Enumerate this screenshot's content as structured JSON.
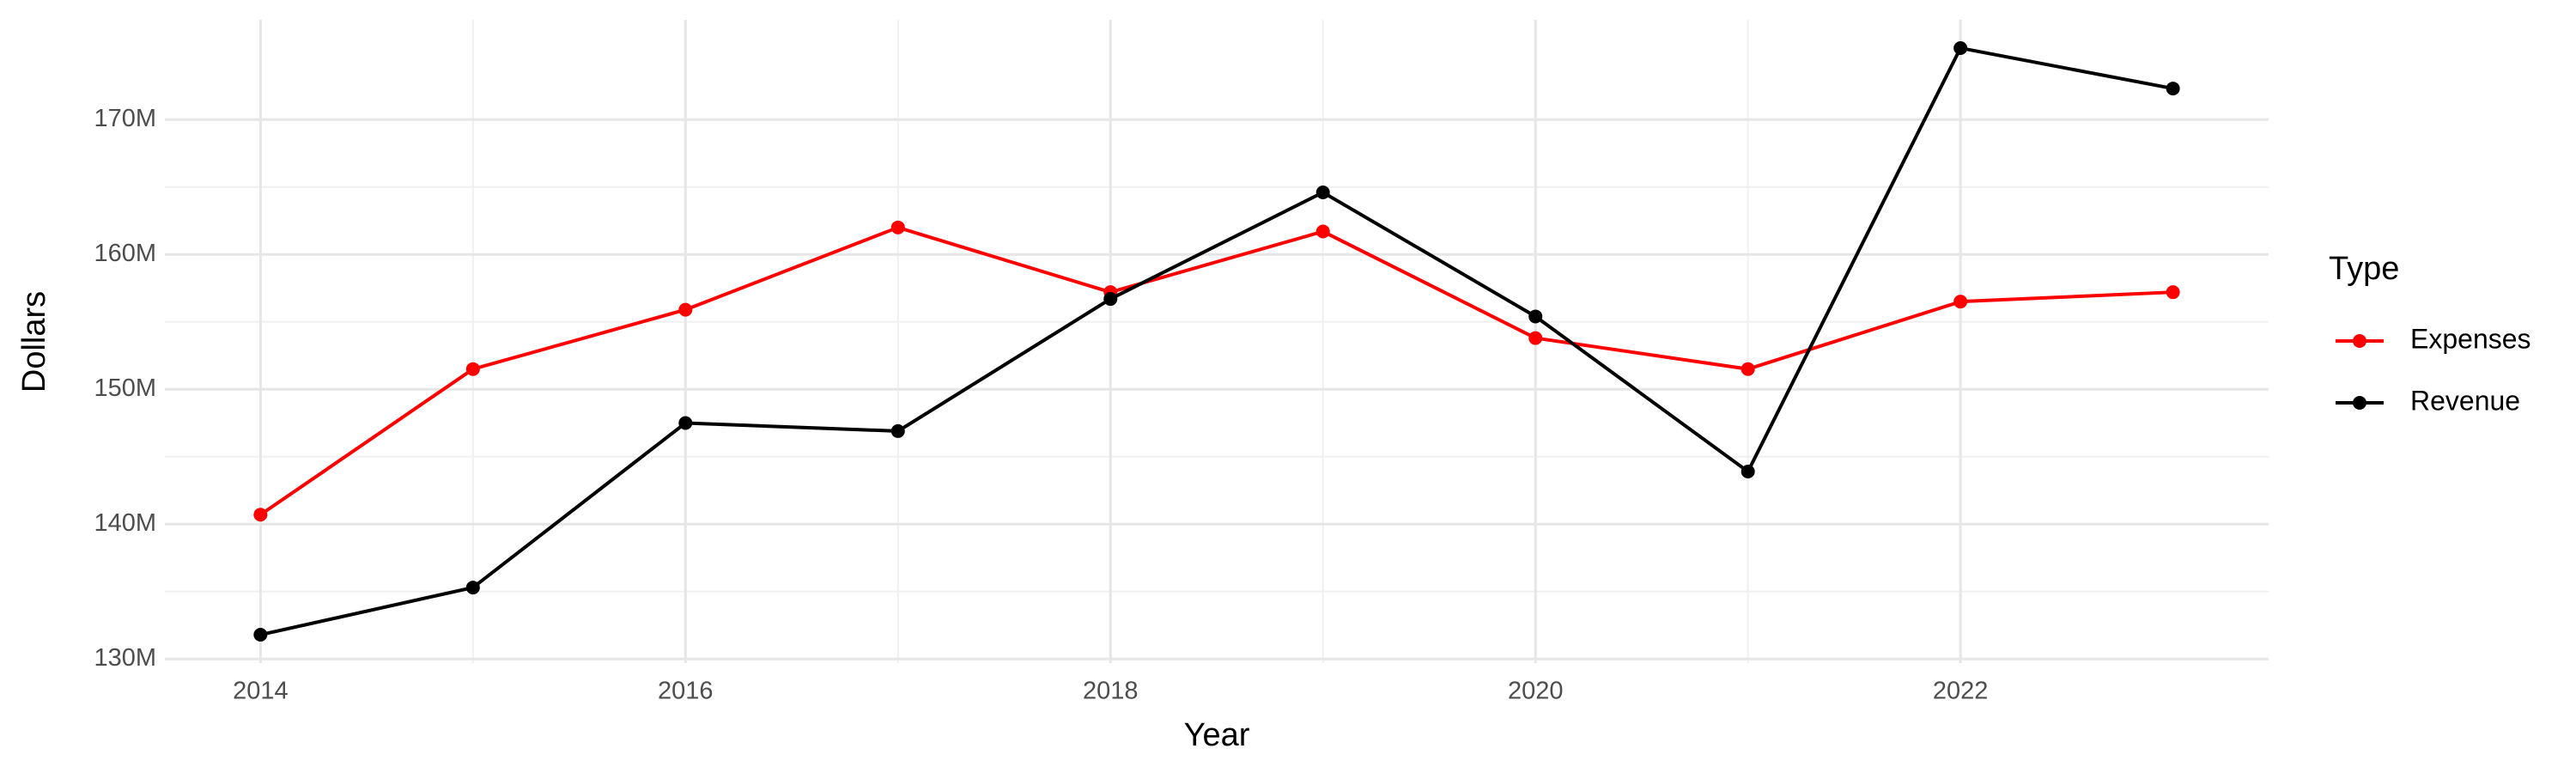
{
  "chart_data": {
    "type": "line",
    "x_label": "Year",
    "y_label": "Dollars",
    "legend_title": "Type",
    "x": [
      2014,
      2015,
      2016,
      2017,
      2018,
      2019,
      2020,
      2021,
      2022,
      2023
    ],
    "series": [
      {
        "name": "Expenses",
        "color": "#ff0000",
        "values": [
          140700000,
          151500000,
          155900000,
          162000000,
          157200000,
          161700000,
          153800000,
          151500000,
          156500000,
          157200000
        ]
      },
      {
        "name": "Revenue",
        "color": "#000000",
        "values": [
          131800000,
          135300000,
          147500000,
          146900000,
          156700000,
          164600000,
          155400000,
          143900000,
          175300000,
          172300000
        ]
      }
    ],
    "xlim": [
      2013.55,
      2023.45
    ],
    "xticks": [
      2014,
      2016,
      2018,
      2020,
      2022
    ],
    "ylim": [
      129700000,
      177400000
    ],
    "yticks": [
      {
        "value": 130000000,
        "label": "130M"
      },
      {
        "value": 140000000,
        "label": "140M"
      },
      {
        "value": 150000000,
        "label": "150M"
      },
      {
        "value": 160000000,
        "label": "160M"
      },
      {
        "value": 170000000,
        "label": "170M"
      }
    ],
    "grid": true,
    "legend": "right"
  }
}
